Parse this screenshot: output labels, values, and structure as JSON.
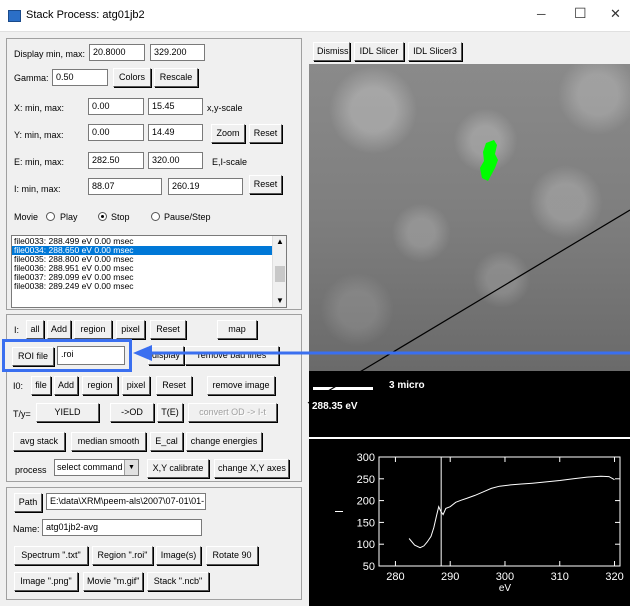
{
  "window": {
    "title": "Stack Process: atg01jb2",
    "min": "─",
    "max": "☐",
    "close": "✕"
  },
  "display": {
    "label": "Display min, max:",
    "min": "20.8000",
    "max": "329.200"
  },
  "gamma": {
    "label": "Gamma:",
    "value": "0.50",
    "colors": "Colors",
    "rescale": "Rescale"
  },
  "x": {
    "label": "X:  min, max:",
    "min": "0.00",
    "max": "15.45",
    "unit": "x,y-scale"
  },
  "y": {
    "label": "Y:  min, max:",
    "min": "0.00",
    "max": "14.49",
    "zoom": "Zoom",
    "reset": "Reset"
  },
  "e": {
    "label": "E:  min, max:",
    "min": "282.50",
    "max": "320.00",
    "unit": "E,I-scale"
  },
  "i": {
    "label": "I:  min, max:",
    "min": "88.07",
    "max": "260.19",
    "reset": "Reset"
  },
  "movie": {
    "label": "Movie",
    "play": "Play",
    "stop": "Stop",
    "pause": "Pause/Step",
    "selected": "stop"
  },
  "files": [
    "file0033: 288.499 eV 0.00 msec",
    "file0034: 288.650 eV 0.00 msec",
    "file0035: 288.800 eV 0.00 msec",
    "file0036: 288.951 eV 0.00 msec",
    "file0037: 289.099 eV 0.00 msec",
    "file0038: 289.249 eV 0.00 msec"
  ],
  "files_selected_index": 1,
  "i_row": {
    "label": "I:",
    "all": "all",
    "add": "Add",
    "region": "region",
    "pixel": "pixel",
    "reset": "Reset",
    "map": "map"
  },
  "roi": {
    "button": "ROI file",
    "value": ".roi",
    "hidden1": "display",
    "hidden2": "remove bad lines"
  },
  "i0_row": {
    "label": "I0:",
    "file": "file",
    "add": "Add",
    "region": "region",
    "pixel": "pixel",
    "reset": "Reset",
    "remove": "remove image"
  },
  "t_row": {
    "label": "T/y=",
    "yield": "YIELD",
    "od": "->OD",
    "te": "T(E)",
    "convert": "convert OD -> I-t"
  },
  "proc_row": {
    "avg": "avg stack",
    "median": "median smooth",
    "ecal": "E_cal",
    "change": "change energies"
  },
  "process": {
    "label": "process",
    "select": "select command",
    "xy": "X,Y calibrate",
    "change_xy": "change X,Y axes"
  },
  "path": {
    "button": "Path",
    "value": "E:\\data\\XRM\\peem-als\\2007\\07-01\\01-"
  },
  "name": {
    "label": "Name:",
    "value": "atg01jb2-avg"
  },
  "save1": {
    "spectrum": "Spectrum \".txt\"",
    "region": "Region \".roi\"",
    "images": "Image(s)",
    "rotate": "Rotate 90"
  },
  "save2": {
    "image": "Image \".png\"",
    "movie": "Movie \"m.gif\"",
    "stack": "Stack \".ncb\""
  },
  "top_buttons": {
    "dismiss": "Dismiss",
    "slicer": "IDL Slicer",
    "slicer3": "IDL Slicer3"
  },
  "scale": {
    "label": "3 micro",
    "energy": "288.35 eV"
  },
  "colors": {
    "accent": "#3a6ff0",
    "roi": "#00ff00",
    "plot_bg": "#000000"
  },
  "chart_data": {
    "type": "line",
    "xlabel": "eV",
    "xlim": [
      277,
      321
    ],
    "ylim": [
      50,
      300
    ],
    "xticks": [
      280,
      290,
      300,
      310,
      320
    ],
    "yticks": [
      50,
      100,
      150,
      200,
      250,
      300
    ],
    "cursor_x": 288.35,
    "series": [
      {
        "x": [
          282.5,
          283.5,
          284.5,
          285.2,
          285.8,
          286.5,
          287.0,
          287.5,
          287.9,
          288.3,
          288.7,
          289.2,
          290.0,
          291.0,
          292.0,
          293.0,
          294.5,
          296.0,
          297.5,
          299.0,
          301.0,
          303.0,
          305.0,
          307.5,
          310.0,
          312.5,
          315.0,
          317.5,
          319.0,
          320.0
        ],
        "values": [
          113,
          98,
          92,
          96,
          105,
          118,
          138,
          165,
          186,
          175,
          168,
          182,
          186,
          196,
          201,
          205,
          212,
          220,
          228,
          233,
          236,
          238,
          240,
          243,
          246,
          250,
          254,
          256,
          255,
          248
        ]
      }
    ]
  }
}
